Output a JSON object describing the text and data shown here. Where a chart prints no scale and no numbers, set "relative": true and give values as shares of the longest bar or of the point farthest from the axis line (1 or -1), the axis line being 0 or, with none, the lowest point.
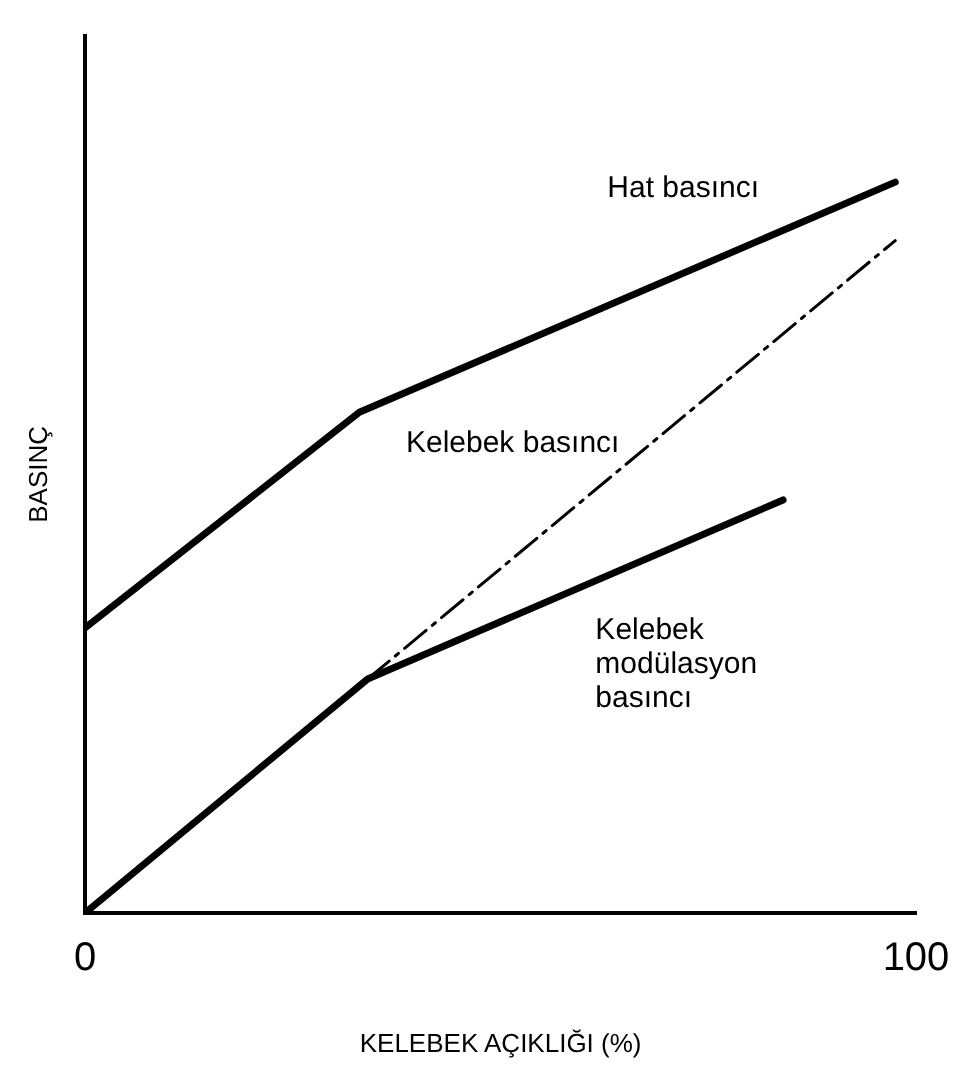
{
  "chart_data": {
    "type": "line",
    "relative": true,
    "xlabel": "KELEBEK AÇIKLIĞI (%)",
    "ylabel": "BASINÇ",
    "xlim": [
      0,
      100
    ],
    "xticks": [
      0,
      100
    ],
    "grid": false,
    "legend": false,
    "marker": "none",
    "series": [
      {
        "name": "Hat basıncı",
        "color": "#000000",
        "x": [
          0,
          33,
          97.5
        ],
        "values": [
          0.39,
          0.685,
          1
        ],
        "line_style": "solid"
      },
      {
        "name": "Kelebek basıncı",
        "color": "#000000",
        "x": [
          34,
          97.5
        ],
        "values": [
          0.32,
          0.92
        ],
        "line_style": "dashed"
      },
      {
        "name": "Kelebek modülasyon basıncı",
        "color": "#000000",
        "x": [
          0,
          34,
          84
        ],
        "values": [
          0,
          0.32,
          0.565
        ],
        "line_style": "solid"
      }
    ]
  }
}
